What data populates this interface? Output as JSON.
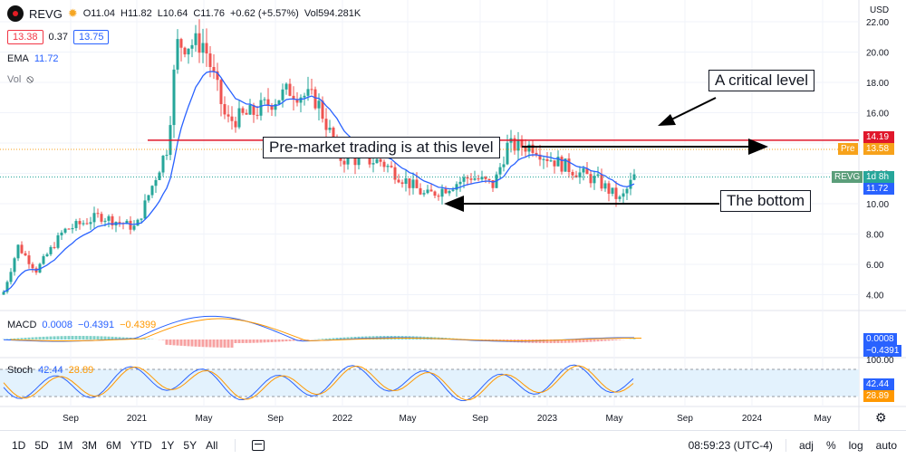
{
  "legend": {
    "symbol": "REVG",
    "open": "O11.04",
    "high": "H11.82",
    "low": "L10.64",
    "close": "C11.76",
    "change": "+0.62 (+5.57%)",
    "volume": "Vol594.281K",
    "bid": "13.38",
    "spread": "0.37",
    "ask": "13.75",
    "ema_label": "EMA",
    "ema_value": "11.72",
    "vol_label": "Vol",
    "macd_label": "MACD",
    "macd_v1": "0.0008",
    "macd_v2": "−0.4391",
    "macd_v3": "−0.4399",
    "stoch_label": "Stoch",
    "stoch_k": "42.44",
    "stoch_d": "28.89"
  },
  "currency": "USD",
  "price_axis": [
    "22.00",
    "20.00",
    "18.00",
    "16.00",
    "14.00",
    "12.00",
    "10.00",
    "8.00",
    "6.00",
    "4.00"
  ],
  "tags": {
    "critical": "14.19",
    "pre_label": "Pre",
    "pre_value": "13.58",
    "sym_label": "REVG",
    "sym_time": "1d 8h",
    "ema_tag": "11.72",
    "macd_tag1": "0.0008",
    "macd_tag2": "−0.4391",
    "stoch_tag1": "42.44",
    "stoch_tag2": "28.89"
  },
  "stoch_axis": [
    "100.00"
  ],
  "time_axis": [
    "Sep",
    "2021",
    "May",
    "Sep",
    "2022",
    "May",
    "Sep",
    "2023",
    "May",
    "Sep",
    "2024",
    "May"
  ],
  "annotations": {
    "critical": "A critical level",
    "premarket": "Pre-market trading is at this level",
    "bottom": "The bottom"
  },
  "toolbar": {
    "ranges": [
      "1D",
      "5D",
      "1M",
      "3M",
      "6M",
      "YTD",
      "1Y",
      "5Y",
      "All"
    ],
    "time": "08:59:23 (UTC-4)",
    "adj": "adj",
    "percent": "%",
    "log": "log",
    "auto": "auto"
  },
  "colors": {
    "up": "#26a69a",
    "down": "#ef5350",
    "ema": "#2962ff",
    "critical_line": "#e0172b",
    "premarket": "#f7a21b",
    "macd_signal": "#ff9800",
    "stoch_k": "#2962ff",
    "stoch_d": "#ff9800"
  },
  "chart_data": {
    "type": "line",
    "title": "REVG",
    "ylabel": "USD",
    "ylim": [
      3,
      23
    ],
    "x": [
      "Sep",
      "2021",
      "May",
      "Sep",
      "2022",
      "May",
      "Sep",
      "2023",
      "May"
    ],
    "series": [
      {
        "name": "REVG",
        "values": [
          7.5,
          9.5,
          19.5,
          16.5,
          13.0,
          11.0,
          11.5,
          13.2,
          11.76
        ]
      },
      {
        "name": "EMA",
        "values": [
          6.5,
          8.8,
          15.5,
          16.0,
          13.8,
          12.0,
          11.4,
          12.5,
          11.72
        ]
      }
    ]
  }
}
